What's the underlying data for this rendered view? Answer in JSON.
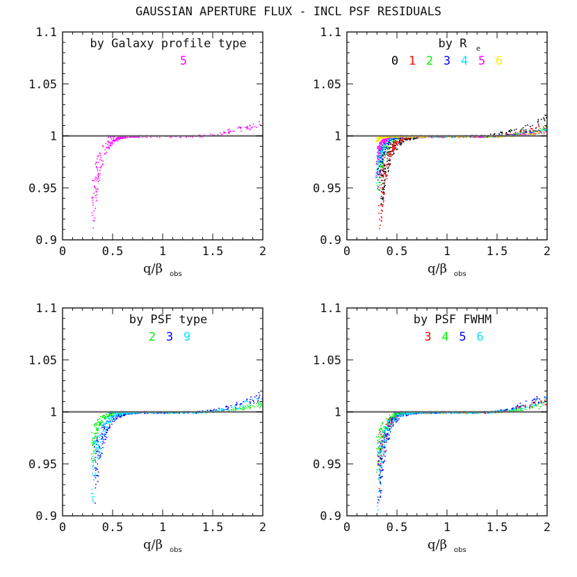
{
  "figure_title": "GAUSSIAN APERTURE FLUX - INCL PSF RESIDUALS",
  "colors": {
    "0": "#000000",
    "1": "#ff0000",
    "2": "#00ee00",
    "3": "#0000ff",
    "4": "#00e5ff",
    "5": "#ff00ff",
    "6": "#ffee00",
    "9": "#00e5ff",
    "reference_line": "#666666"
  },
  "chart_data": [
    {
      "type": "scatter",
      "title": "by Galaxy profile type",
      "title_sub": "",
      "xlabel_main": "q/β",
      "xlabel_sub": "obs",
      "xlim": [
        0,
        2
      ],
      "ylim": [
        0.9,
        1.1
      ],
      "xticks": [
        0,
        0.5,
        1,
        1.5,
        2
      ],
      "xtick_labels": [
        "0",
        "0.5",
        "1",
        "1.5",
        "2"
      ],
      "yticks": [
        0.9,
        0.95,
        1,
        1.05,
        1.1
      ],
      "ytick_labels": [
        "0.9",
        "0.95",
        "1",
        "1.05",
        "1.1"
      ],
      "reference_y": 1.0,
      "legend": [
        "5"
      ],
      "series": [
        {
          "name": "5",
          "color": "#ff00ff",
          "x_start": 0.3,
          "min_y": 0.9,
          "decay": 0.075,
          "high_x": 1.25,
          "rise": 0.021
        }
      ]
    },
    {
      "type": "scatter",
      "title": "by R",
      "title_sub": "e",
      "xlabel_main": "q/β",
      "xlabel_sub": "obs",
      "xlim": [
        0,
        2
      ],
      "ylim": [
        0.9,
        1.1
      ],
      "xticks": [
        0,
        0.5,
        1,
        1.5,
        2
      ],
      "xtick_labels": [
        "0",
        "0.5",
        "1",
        "1.5",
        "2"
      ],
      "yticks": [
        0.9,
        0.95,
        1,
        1.05,
        1.1
      ],
      "ytick_labels": [
        "0.9",
        "0.95",
        "1",
        "1.05",
        "1.1"
      ],
      "reference_y": 1.0,
      "legend": [
        "0",
        "1",
        "2",
        "3",
        "4",
        "5",
        "6"
      ],
      "series": [
        {
          "name": "0",
          "color": "#000000",
          "x_start": 0.35,
          "min_y": 0.935,
          "decay": 0.09,
          "high_x": 1.2,
          "rise": 0.022
        },
        {
          "name": "1",
          "color": "#ff0000",
          "x_start": 0.33,
          "min_y": 0.9,
          "decay": 0.07,
          "high_x": 1.3,
          "rise": 0.014
        },
        {
          "name": "2",
          "color": "#00ee00",
          "x_start": 0.31,
          "min_y": 0.94,
          "decay": 0.06,
          "high_x": 1.35,
          "rise": 0.01
        },
        {
          "name": "3",
          "color": "#0000ff",
          "x_start": 0.31,
          "min_y": 0.95,
          "decay": 0.055,
          "high_x": 1.35,
          "rise": 0.009
        },
        {
          "name": "4",
          "color": "#00e5ff",
          "x_start": 0.3,
          "min_y": 0.96,
          "decay": 0.05,
          "high_x": 1.4,
          "rise": 0.008
        },
        {
          "name": "5",
          "color": "#ff00ff",
          "x_start": 0.3,
          "min_y": 0.97,
          "decay": 0.045,
          "high_x": 1.4,
          "rise": 0.007
        },
        {
          "name": "6",
          "color": "#ffee00",
          "x_start": 0.3,
          "min_y": 0.995,
          "decay": 0.04,
          "high_x": 1.45,
          "rise": 0.006
        }
      ]
    },
    {
      "type": "scatter",
      "title": "by PSF type",
      "title_sub": "",
      "xlabel_main": "q/β",
      "xlabel_sub": "obs",
      "xlim": [
        0,
        2
      ],
      "ylim": [
        0.9,
        1.1
      ],
      "xticks": [
        0,
        0.5,
        1,
        1.5,
        2
      ],
      "xtick_labels": [
        "0",
        "0.5",
        "1",
        "1.5",
        "2"
      ],
      "yticks": [
        0.9,
        0.95,
        1,
        1.05,
        1.1
      ],
      "ytick_labels": [
        "0.9",
        "0.95",
        "1",
        "1.05",
        "1.1"
      ],
      "reference_y": 1.0,
      "legend": [
        "2",
        "3",
        "9"
      ],
      "series": [
        {
          "name": "2",
          "color": "#00ee00",
          "x_start": 0.3,
          "min_y": 0.95,
          "decay": 0.06,
          "high_x": 1.35,
          "rise": 0.012
        },
        {
          "name": "3",
          "color": "#0000ff",
          "x_start": 0.32,
          "min_y": 0.9,
          "decay": 0.08,
          "high_x": 1.25,
          "rise": 0.022
        },
        {
          "name": "9",
          "color": "#00e5ff",
          "x_start": 0.3,
          "min_y": 0.9,
          "decay": 0.075,
          "high_x": 1.3,
          "rise": 0.02
        }
      ]
    },
    {
      "type": "scatter",
      "title": "by PSF FWHM",
      "title_sub": "",
      "xlabel_main": "q/β",
      "xlabel_sub": "obs",
      "xlim": [
        0,
        2
      ],
      "ylim": [
        0.9,
        1.1
      ],
      "xticks": [
        0,
        0.5,
        1,
        1.5,
        2
      ],
      "xtick_labels": [
        "0",
        "0.5",
        "1",
        "1.5",
        "2"
      ],
      "yticks": [
        0.9,
        0.95,
        1,
        1.05,
        1.1
      ],
      "ytick_labels": [
        "0.9",
        "0.95",
        "1",
        "1.05",
        "1.1"
      ],
      "reference_y": 1.0,
      "legend": [
        "3",
        "4",
        "5",
        "6"
      ],
      "series": [
        {
          "name": "3",
          "color": "#ff0000",
          "x_start": 0.32,
          "min_y": 0.93,
          "decay": 0.07,
          "high_x": 1.3,
          "rise": 0.016
        },
        {
          "name": "4",
          "color": "#00ee00",
          "x_start": 0.31,
          "min_y": 0.94,
          "decay": 0.06,
          "high_x": 1.35,
          "rise": 0.012
        },
        {
          "name": "5",
          "color": "#0000ff",
          "x_start": 0.32,
          "min_y": 0.9,
          "decay": 0.075,
          "high_x": 1.3,
          "rise": 0.022
        },
        {
          "name": "6",
          "color": "#00e5ff",
          "x_start": 0.31,
          "min_y": 0.9,
          "decay": 0.07,
          "high_x": 1.35,
          "rise": 0.018
        }
      ]
    }
  ]
}
